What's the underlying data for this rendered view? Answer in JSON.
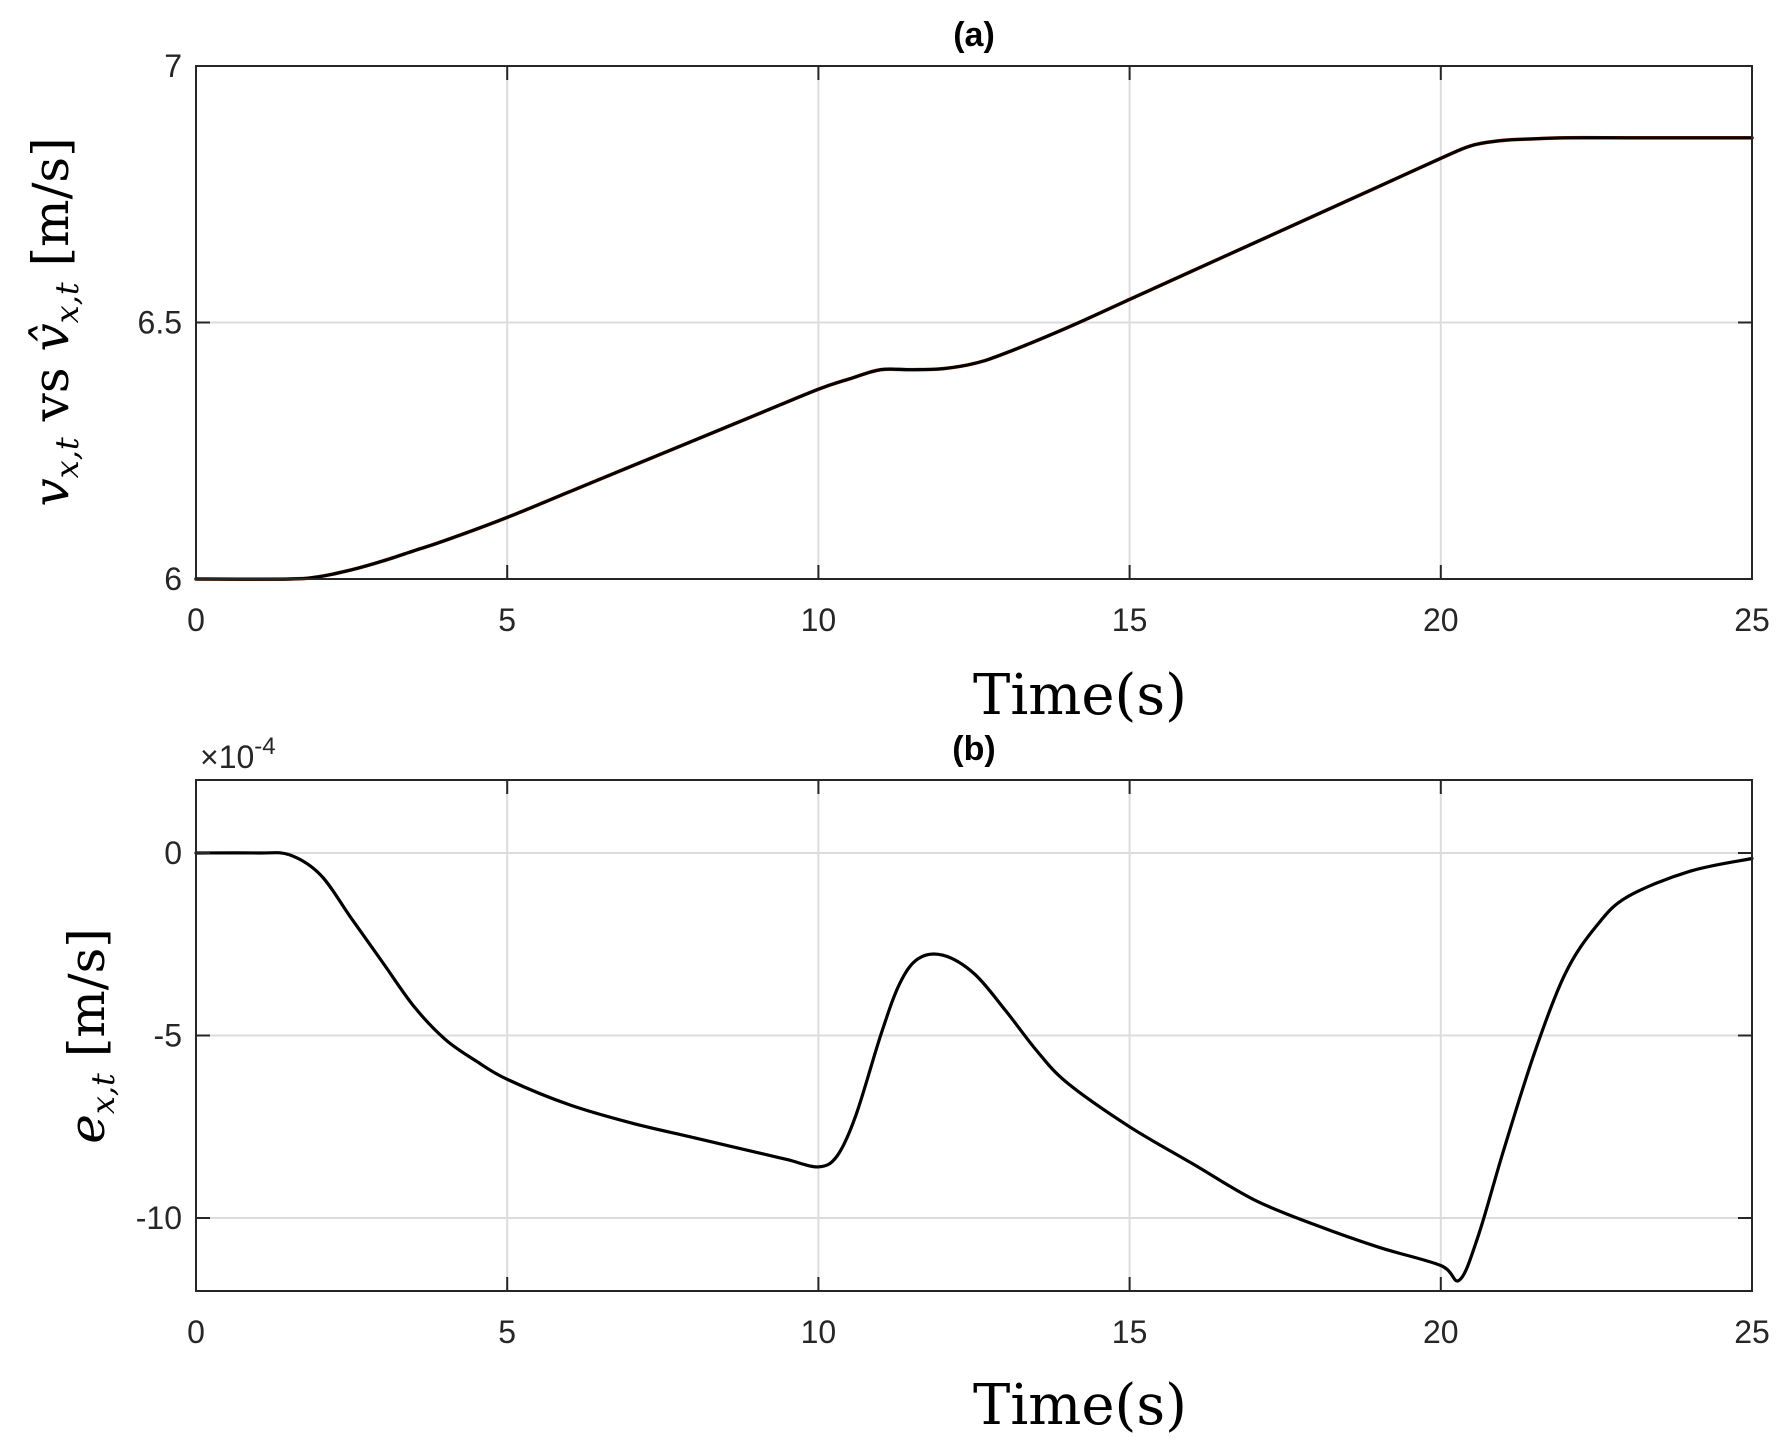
{
  "chart_data": [
    {
      "id": "a",
      "type": "line",
      "title": "(a)",
      "xlabel": "Time(s)",
      "ylabel_parts": [
        "v",
        "x,t",
        " vs ",
        "v̂",
        "x,t",
        " [m/s]"
      ],
      "xlim": [
        0,
        25
      ],
      "ylim": [
        6,
        7
      ],
      "xticks": [
        0,
        5,
        10,
        15,
        20,
        25
      ],
      "yticks": [
        6,
        6.5,
        7
      ],
      "ytick_labels": [
        "6",
        "6.5",
        "7"
      ],
      "grid": true,
      "series": [
        {
          "color": "#000000",
          "x": [
            0,
            1.5,
            2,
            2.5,
            3,
            3.5,
            4,
            5,
            6,
            7,
            8,
            9,
            10,
            10.5,
            11,
            11.5,
            12,
            12.5,
            13,
            14,
            15,
            16,
            17,
            18,
            19,
            20,
            20.5,
            21,
            21.5,
            22,
            23,
            24,
            25
          ],
          "y": [
            6.0,
            6.0,
            6.005,
            6.018,
            6.035,
            6.055,
            6.075,
            6.12,
            6.17,
            6.22,
            6.27,
            6.32,
            6.37,
            6.39,
            6.408,
            6.408,
            6.41,
            6.42,
            6.44,
            6.49,
            6.545,
            6.6,
            6.655,
            6.71,
            6.765,
            6.82,
            6.845,
            6.855,
            6.858,
            6.86,
            6.86,
            6.86,
            6.86
          ]
        },
        {
          "color": "#d95319",
          "x": [
            0,
            1.5,
            2,
            2.5,
            3,
            3.5,
            4,
            5,
            6,
            7,
            8,
            9,
            10,
            10.5,
            11,
            11.5,
            12,
            12.5,
            13,
            14,
            15,
            16,
            17,
            18,
            19,
            20,
            20.5,
            21,
            21.5,
            22,
            23,
            24,
            25
          ],
          "y": [
            6.0,
            6.0,
            6.005,
            6.018,
            6.035,
            6.055,
            6.075,
            6.12,
            6.17,
            6.22,
            6.27,
            6.32,
            6.37,
            6.39,
            6.408,
            6.408,
            6.41,
            6.42,
            6.44,
            6.49,
            6.545,
            6.6,
            6.655,
            6.71,
            6.765,
            6.82,
            6.845,
            6.855,
            6.858,
            6.86,
            6.86,
            6.86,
            6.86
          ]
        }
      ]
    },
    {
      "id": "b",
      "type": "line",
      "title": "(b)",
      "xlabel": "Time(s)",
      "ylabel_parts": [
        "e",
        "x,t",
        " [m/s]"
      ],
      "exponent_label": "×10",
      "exponent_power": "-4",
      "xlim": [
        0,
        25
      ],
      "ylim": [
        -12,
        2
      ],
      "xticks": [
        0,
        5,
        10,
        15,
        20,
        25
      ],
      "yticks": [
        -10,
        -5,
        0
      ],
      "ytick_labels": [
        "-10",
        "-5",
        "0"
      ],
      "grid": true,
      "series": [
        {
          "color": "#000000",
          "x": [
            0,
            1.0,
            1.5,
            2,
            2.5,
            3,
            3.5,
            4,
            4.5,
            5,
            6,
            7,
            8,
            9,
            9.5,
            10,
            10.3,
            10.6,
            11,
            11.3,
            11.6,
            12,
            12.5,
            13,
            13.5,
            14,
            15,
            16,
            17,
            18,
            19,
            20,
            20.3,
            20.6,
            21,
            21.5,
            22,
            22.5,
            23,
            24,
            25
          ],
          "y": [
            0,
            0,
            -0.05,
            -0.6,
            -1.8,
            -3.0,
            -4.2,
            -5.1,
            -5.7,
            -6.2,
            -6.9,
            -7.4,
            -7.8,
            -8.2,
            -8.4,
            -8.6,
            -8.3,
            -7.2,
            -5.0,
            -3.6,
            -2.9,
            -2.8,
            -3.3,
            -4.3,
            -5.4,
            -6.3,
            -7.5,
            -8.5,
            -9.5,
            -10.2,
            -10.8,
            -11.3,
            -11.7,
            -10.5,
            -8.2,
            -5.5,
            -3.3,
            -2.0,
            -1.2,
            -0.5,
            -0.15
          ]
        }
      ]
    }
  ]
}
